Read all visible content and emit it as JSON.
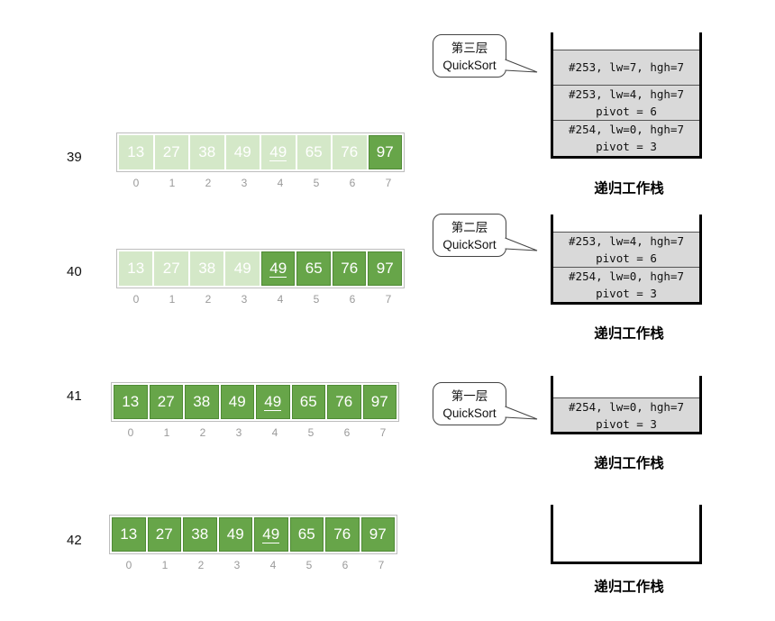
{
  "indices": [
    "0",
    "1",
    "2",
    "3",
    "4",
    "5",
    "6",
    "7"
  ],
  "stack_caption": "递归工作栈",
  "steps": [
    {
      "label": "39",
      "cells": [
        {
          "value": "13",
          "state": "light"
        },
        {
          "value": "27",
          "state": "light"
        },
        {
          "value": "38",
          "state": "light"
        },
        {
          "value": "49",
          "state": "light"
        },
        {
          "value": "49",
          "state": "light",
          "pivot": true
        },
        {
          "value": "65",
          "state": "light"
        },
        {
          "value": "76",
          "state": "light"
        },
        {
          "value": "97",
          "state": "dark"
        }
      ],
      "bubble": {
        "line1": "第三层",
        "line2": "QuickSort"
      },
      "stack": [
        {
          "lines": [
            "#253, lw=7, hgh=7"
          ]
        },
        {
          "lines": [
            "#253, lw=4, hgh=7",
            "pivot = 6"
          ]
        },
        {
          "lines": [
            "#254, lw=0, hgh=7",
            "pivot = 3"
          ]
        }
      ]
    },
    {
      "label": "40",
      "cells": [
        {
          "value": "13",
          "state": "light"
        },
        {
          "value": "27",
          "state": "light"
        },
        {
          "value": "38",
          "state": "light"
        },
        {
          "value": "49",
          "state": "light"
        },
        {
          "value": "49",
          "state": "dark",
          "pivot": true
        },
        {
          "value": "65",
          "state": "dark"
        },
        {
          "value": "76",
          "state": "dark"
        },
        {
          "value": "97",
          "state": "dark"
        }
      ],
      "bubble": {
        "line1": "第二层",
        "line2": "QuickSort"
      },
      "stack": [
        {
          "lines": [
            "#253, lw=4, hgh=7",
            "pivot = 6"
          ]
        },
        {
          "lines": [
            "#254, lw=0, hgh=7",
            "pivot = 3"
          ]
        }
      ]
    },
    {
      "label": "41",
      "cells": [
        {
          "value": "13",
          "state": "dark"
        },
        {
          "value": "27",
          "state": "dark"
        },
        {
          "value": "38",
          "state": "dark"
        },
        {
          "value": "49",
          "state": "dark"
        },
        {
          "value": "49",
          "state": "dark",
          "pivot": true
        },
        {
          "value": "65",
          "state": "dark"
        },
        {
          "value": "76",
          "state": "dark"
        },
        {
          "value": "97",
          "state": "dark"
        }
      ],
      "bubble": {
        "line1": "第一层",
        "line2": "QuickSort"
      },
      "stack": [
        {
          "lines": [
            "#254, lw=0, hgh=7",
            "pivot = 3"
          ]
        }
      ]
    },
    {
      "label": "42",
      "cells": [
        {
          "value": "13",
          "state": "dark"
        },
        {
          "value": "27",
          "state": "dark"
        },
        {
          "value": "38",
          "state": "dark"
        },
        {
          "value": "49",
          "state": "dark"
        },
        {
          "value": "49",
          "state": "dark",
          "pivot": true
        },
        {
          "value": "65",
          "state": "dark"
        },
        {
          "value": "76",
          "state": "dark"
        },
        {
          "value": "97",
          "state": "dark"
        }
      ],
      "bubble": null,
      "stack": []
    }
  ]
}
